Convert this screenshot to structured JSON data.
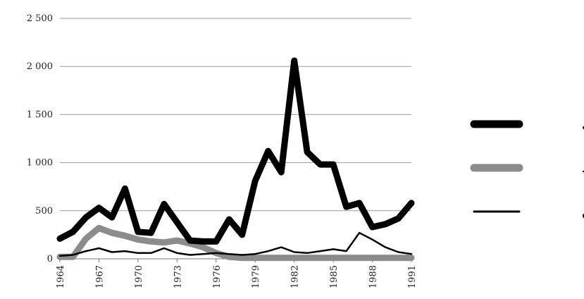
{
  "chart_data": {
    "type": "line",
    "title": "",
    "xlabel": "",
    "ylabel": "",
    "ylim": [
      0,
      2500
    ],
    "xlim": [
      1964,
      1991
    ],
    "grid": true,
    "legend_position": "right",
    "x": [
      1964,
      1965,
      1966,
      1967,
      1968,
      1969,
      1970,
      1971,
      1972,
      1973,
      1974,
      1975,
      1976,
      1977,
      1978,
      1979,
      1980,
      1981,
      1982,
      1983,
      1984,
      1985,
      1986,
      1987,
      1988,
      1989,
      1990,
      1991
    ],
    "x_tick_labels": [
      "1964",
      "1967",
      "1970",
      "1973",
      "1976",
      "1979",
      "1982",
      "1985",
      "1988",
      "1991"
    ],
    "y_tick_labels": [
      "0",
      "500",
      "1 000",
      "1 500",
      "2 000",
      "2 500"
    ],
    "series": [
      {
        "name": "کره جنوبی",
        "color": "#000000",
        "values": [
          210,
          280,
          430,
          530,
          430,
          730,
          280,
          270,
          570,
          380,
          190,
          180,
          180,
          410,
          250,
          810,
          1120,
          900,
          2060,
          1110,
          980,
          980,
          540,
          580,
          330,
          360,
          420,
          580
        ]
      },
      {
        "name": "تایلند",
        "color": "#8c8c8c",
        "values": [
          20,
          20,
          210,
          320,
          270,
          240,
          200,
          180,
          170,
          190,
          160,
          120,
          60,
          20,
          10,
          10,
          10,
          10,
          10,
          10,
          10,
          10,
          10,
          10,
          10,
          10,
          10,
          10
        ]
      },
      {
        "name": "فیلیپین",
        "color": "#000000",
        "values": [
          30,
          40,
          80,
          110,
          70,
          80,
          60,
          60,
          110,
          60,
          40,
          50,
          60,
          50,
          40,
          50,
          80,
          120,
          70,
          60,
          80,
          100,
          80,
          270,
          200,
          120,
          70,
          50
        ]
      }
    ]
  }
}
